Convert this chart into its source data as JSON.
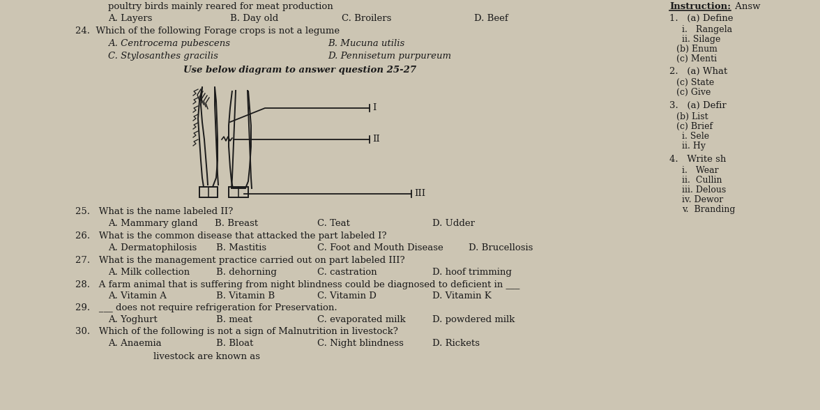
{
  "bg_color": "#ccc5b3",
  "text_color": "#1a1a1a",
  "right_col_lines": [
    "1.   (a) Define",
    "        i.   Rangela",
    "        ii. Silage",
    "     (b) Enum",
    "     (c) Menti",
    "2.   (a) What",
    "     (c) State",
    "     (c) Give",
    "3.   (a) Defir",
    "     (b) List",
    "     (c) Brief",
    "        i. Sele",
    "        ii. Hy",
    "4.   Write sh",
    "        i.   Wear",
    "        ii.  Cullin",
    "        iii. Delous",
    "        iv. Dewor",
    "        v.  Branding"
  ]
}
